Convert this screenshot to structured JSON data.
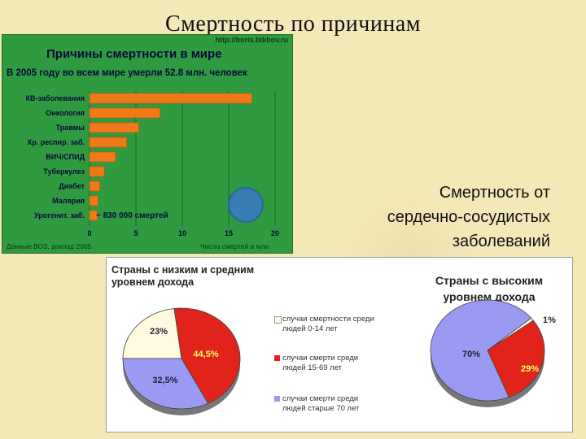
{
  "slide": {
    "title": "Смертность по причинам",
    "caption_lines": [
      "Смертность от",
      "сердечно-сосудистых",
      "заболеваний"
    ]
  },
  "colors": {
    "panel_bg": "#2f9a3f",
    "bar": "#f07a1a",
    "pie_children": "#fffbe0",
    "pie_adults": "#e0241c",
    "pie_elderly": "#9a9af2"
  },
  "chart_data": [
    {
      "type": "bar",
      "title": "Причины смертности в мире",
      "subtitle": "В 2005 году во всем мире умерли 52.8 млн. человек",
      "url": "http://boris.bikbov.ru",
      "categories": [
        "КВ-заболевания",
        "Онкология",
        "Травмы",
        "Хр. респир. заб.",
        "ВИЧ/СПИД",
        "Туберкулез",
        "Диабет",
        "Малярия",
        "Урогенит. заб."
      ],
      "values": [
        17.5,
        7.6,
        5.3,
        4,
        2.8,
        1.6,
        1.1,
        0.9,
        0.83
      ],
      "xticks": [
        0,
        5,
        10,
        15,
        20
      ],
      "xlim": [
        0,
        20
      ],
      "annotation": "~ 830 000 смертей",
      "source": "Данные ВОЗ, доклад 2005",
      "source2": "Числа смертей в млн"
    },
    {
      "type": "pie",
      "title_lines": [
        "Страны с низким и средним",
        "уровнем дохода"
      ],
      "labels": [
        "случаи смертности среди людей 0-14 лет",
        "случаи смерти среди людей 15-69 лет",
        "случаи смерти среди людей старше 70 лет"
      ],
      "values": [
        23,
        44.5,
        32.5
      ],
      "value_labels": [
        "23%",
        "44,5%",
        "32,5%"
      ]
    },
    {
      "type": "pie",
      "title_lines": [
        "Страны с высоким",
        "уровнем дохода"
      ],
      "labels": [
        "случаи смертности среди людей 0-14 лет",
        "случаи смерти среди людей 15-69 лет",
        "случаи смерти среди людей старше 70 лет"
      ],
      "values": [
        1,
        29,
        70
      ],
      "value_labels": [
        "1%",
        "29%",
        "70%"
      ]
    }
  ],
  "legend": [
    {
      "line1": "случаи смертности среди",
      "line2": "людей 0-14 лет"
    },
    {
      "line1": "случаи смерти среди",
      "line2": "людей 15-69 лет"
    },
    {
      "line1": "случаи смерти среди",
      "line2": "людей старше 70 лет"
    }
  ]
}
